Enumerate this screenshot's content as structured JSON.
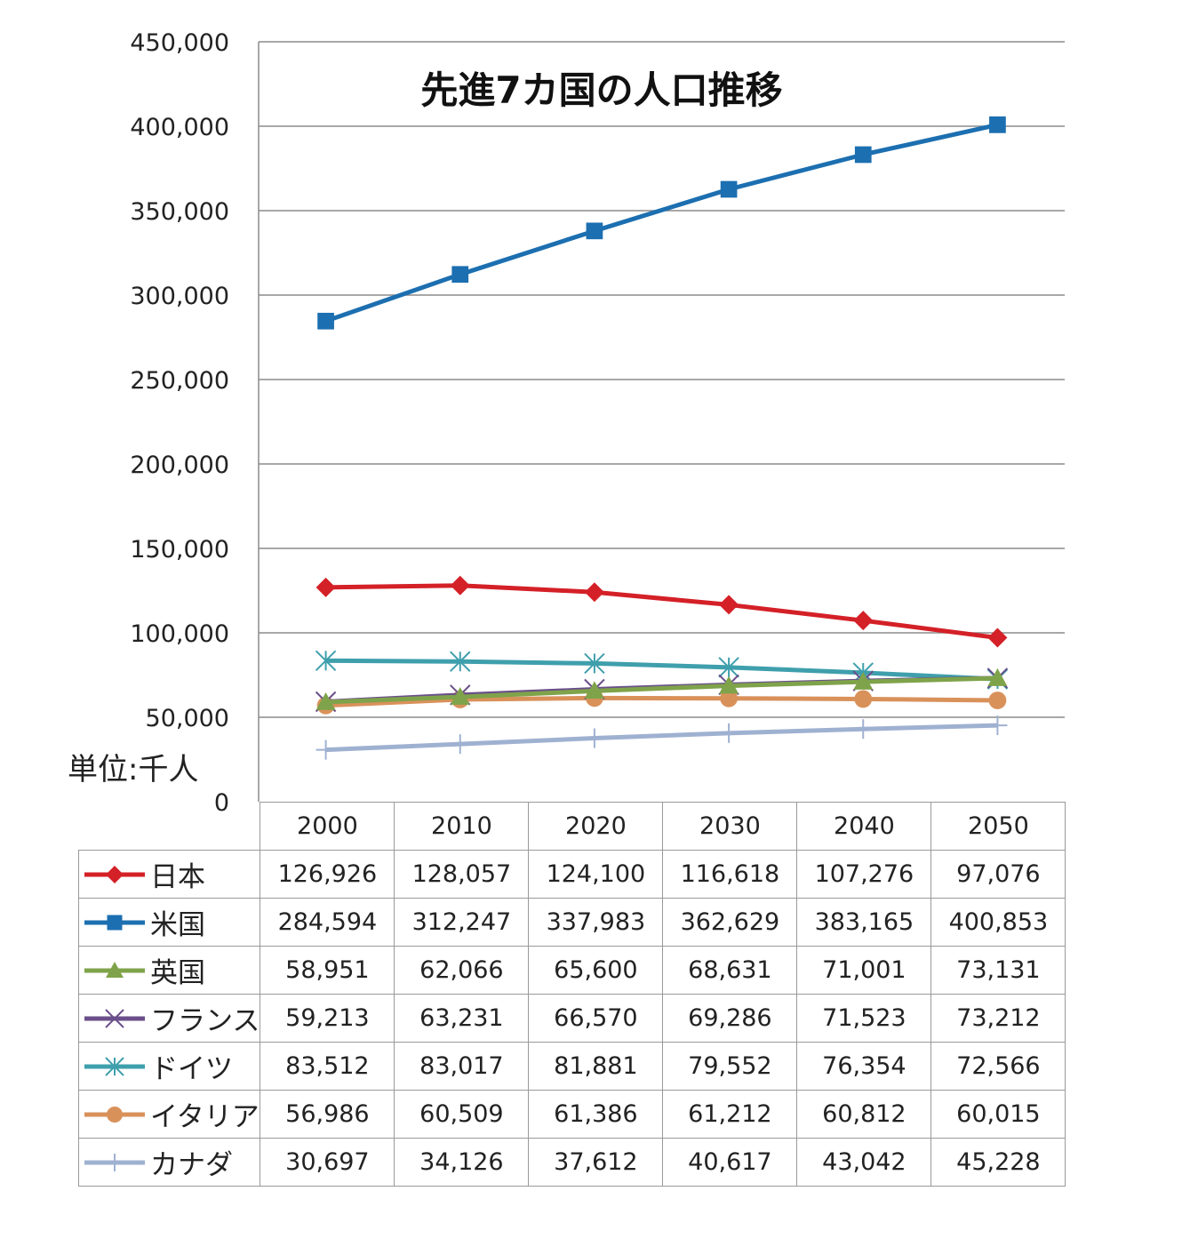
{
  "chart_data": {
    "type": "line",
    "title": "先進7カ国の人口推移",
    "unit_label": "単位:千人",
    "x": [
      "2000",
      "2010",
      "2020",
      "2030",
      "2040",
      "2050"
    ],
    "ylim": [
      0,
      450000
    ],
    "yticks": [
      "0",
      "50,000",
      "100,000",
      "150,000",
      "200,000",
      "250,000",
      "300,000",
      "350,000",
      "400,000",
      "450,000"
    ],
    "grid": true,
    "legend_placement": "table-left",
    "series": [
      {
        "name": "日本",
        "color": "#d42027",
        "marker": "diamond",
        "values": [
          126926,
          128057,
          124100,
          116618,
          107276,
          97076
        ],
        "labels": [
          "126,926",
          "128,057",
          "124,100",
          "116,618",
          "107,276",
          "97,076"
        ]
      },
      {
        "name": "米国",
        "color": "#1c6fb0",
        "marker": "square",
        "values": [
          284594,
          312247,
          337983,
          362629,
          383165,
          400853
        ],
        "labels": [
          "284,594",
          "312,247",
          "337,983",
          "362,629",
          "383,165",
          "400,853"
        ]
      },
      {
        "name": "英国",
        "color": "#7fa34a",
        "marker": "triangle",
        "values": [
          58951,
          62066,
          65600,
          68631,
          71001,
          73131
        ],
        "labels": [
          "58,951",
          "62,066",
          "65,600",
          "68,631",
          "71,001",
          "73,131"
        ]
      },
      {
        "name": "フランス",
        "color": "#6a4f8a",
        "marker": "x",
        "values": [
          59213,
          63231,
          66570,
          69286,
          71523,
          73212
        ],
        "labels": [
          "59,213",
          "63,231",
          "66,570",
          "69,286",
          "71,523",
          "73,212"
        ]
      },
      {
        "name": "ドイツ",
        "color": "#3f9fac",
        "marker": "star",
        "values": [
          83512,
          83017,
          81881,
          79552,
          76354,
          72566
        ],
        "labels": [
          "83,512",
          "83,017",
          "81,881",
          "79,552",
          "76,354",
          "72,566"
        ]
      },
      {
        "name": "イタリア",
        "color": "#d9915a",
        "marker": "circle",
        "values": [
          56986,
          60509,
          61386,
          61212,
          60812,
          60015
        ],
        "labels": [
          "56,986",
          "60,509",
          "61,386",
          "61,212",
          "60,812",
          "60,015"
        ]
      },
      {
        "name": "カナダ",
        "color": "#9fb1d1",
        "marker": "plus",
        "values": [
          30697,
          34126,
          37612,
          40617,
          43042,
          45228
        ],
        "labels": [
          "30,697",
          "34,126",
          "37,612",
          "40,617",
          "43,042",
          "45,228"
        ]
      }
    ]
  }
}
